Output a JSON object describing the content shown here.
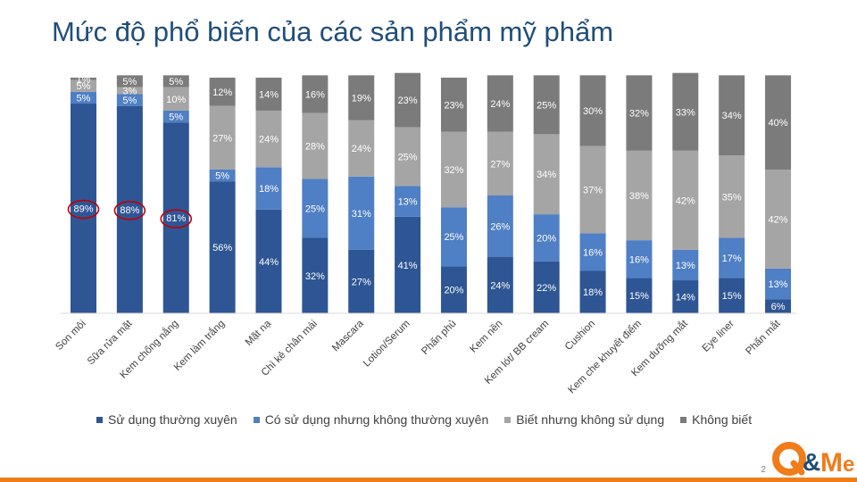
{
  "title": "Mức độ phổ biến của các sản phẩm mỹ phẩm",
  "page_number": "2",
  "logo_text": "Q&Me",
  "colors": {
    "title": "#1f4e79",
    "accent_orange": "#f07c1a",
    "highlight_ring": "#c00000"
  },
  "chart_data": {
    "type": "bar",
    "stacked": true,
    "ylim": [
      0,
      100
    ],
    "grid": false,
    "legend_position": "bottom",
    "categories": [
      "Son môi",
      "Sữa rửa mặt",
      "Kem chống nắng",
      "Kem làm trắng",
      "Mặt nạ",
      "Chì kẻ chân mài",
      "Mascara",
      "Lotion/Serum",
      "Phấn phủ",
      "Kem nền",
      "Kem lót/ BB cream",
      "Cushion",
      "Kem che khuyết điểm",
      "Kem dưỡng mắt",
      "Eye liner",
      "Phấn mắt"
    ],
    "series": [
      {
        "name": "Sử dụng thường xuyên",
        "color": "#2e5594",
        "label_color": "#ffffff",
        "values": [
          89,
          88,
          81,
          56,
          44,
          32,
          27,
          41,
          20,
          24,
          22,
          18,
          15,
          14,
          15,
          6
        ]
      },
      {
        "name": "Có sử dụng nhưng không thường xuyên",
        "color": "#4f7fc4",
        "label_color": "#ffffff",
        "values": [
          5,
          5,
          5,
          5,
          18,
          25,
          31,
          13,
          25,
          26,
          20,
          16,
          16,
          13,
          17,
          13
        ]
      },
      {
        "name": "Biết nhưng không sử dụng",
        "color": "#a5a5a5",
        "label_color": "#ffffff",
        "values": [
          5,
          3,
          10,
          27,
          24,
          28,
          24,
          25,
          32,
          27,
          34,
          37,
          38,
          42,
          35,
          42
        ]
      },
      {
        "name": "Không biết",
        "color": "#7b7b7b",
        "label_color": "#ffffff",
        "values": [
          1,
          5,
          5,
          12,
          14,
          16,
          19,
          23,
          23,
          24,
          25,
          30,
          32,
          33,
          34,
          40
        ]
      }
    ],
    "highlighted_categories": [
      0,
      1,
      2
    ]
  }
}
